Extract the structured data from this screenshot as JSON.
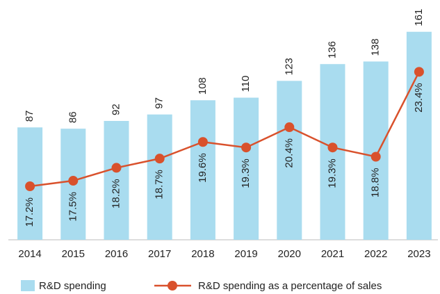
{
  "chart_data": {
    "type": "bar_line",
    "categories": [
      "2014",
      "2015",
      "2016",
      "2017",
      "2018",
      "2019",
      "2020",
      "2021",
      "2022",
      "2023"
    ],
    "series": [
      {
        "name": "R&D spending",
        "color": "#a9dcef",
        "values": [
          87,
          86,
          92,
          97,
          108,
          110,
          123,
          136,
          138,
          161
        ]
      },
      {
        "name": "R&D spending as a percentage of sales",
        "color": "#d9512c",
        "axis": "y2",
        "type": "line",
        "values": [
          17.2,
          17.5,
          18.2,
          18.7,
          19.6,
          19.3,
          20.4,
          19.3,
          18.8,
          23.4
        ],
        "value_labels": [
          "17.2%",
          "17.5%",
          "18.2%",
          "18.7%",
          "19.6%",
          "19.3%",
          "20.4%",
          "19.3%",
          "18.8%",
          "23.4%"
        ]
      }
    ],
    "ylim": [
      0,
      170
    ],
    "y2lim": [
      14.3,
      26.2
    ]
  }
}
